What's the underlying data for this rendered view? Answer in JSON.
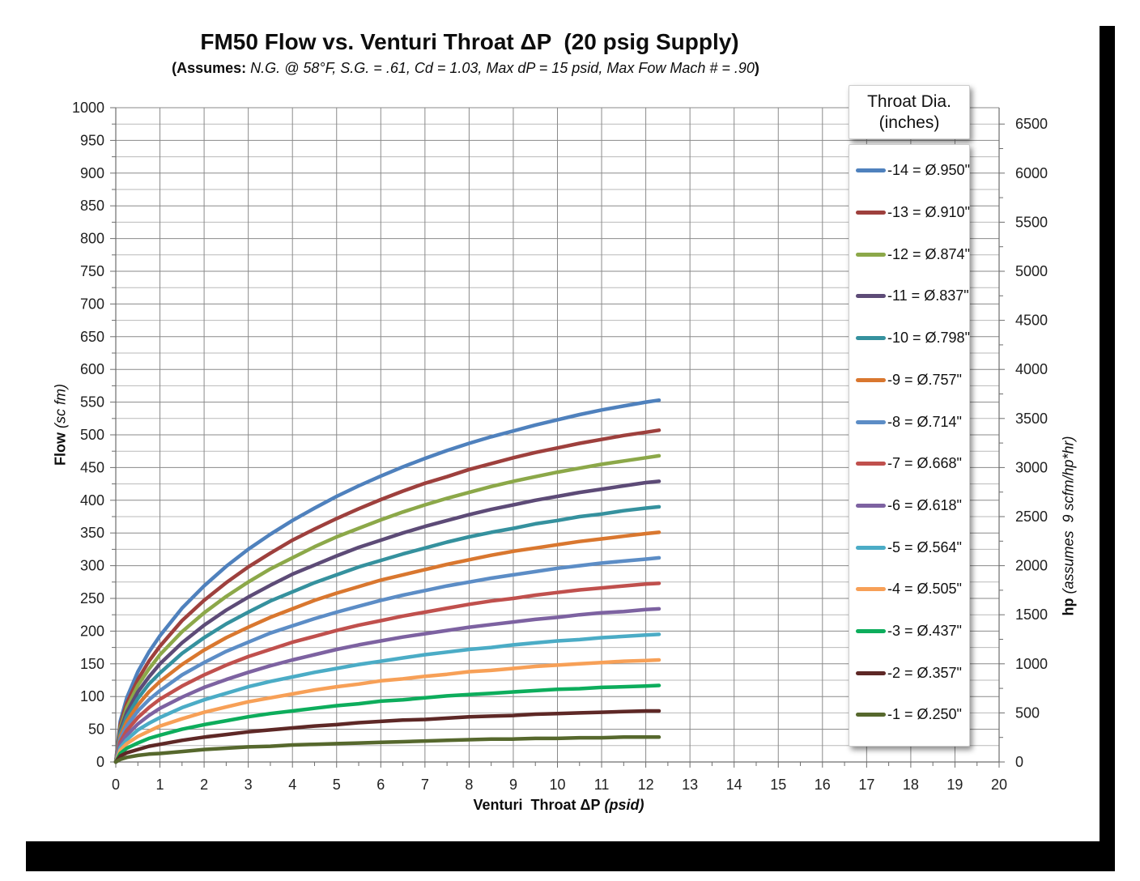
{
  "header": {
    "title": "FM50 Flow vs. Venturi Throat ΔP  (20 psig Supply)",
    "subtitle_prefix": "(Assumes:",
    "subtitle_body": " N.G. @ 58°F, S.G. = .61, Cd = 1.03, Max dP = 15 psid, Max Fow Mach # = .90",
    "subtitle_suffix": ")"
  },
  "axis_titles": {
    "x_bold": "Venturi  Throat ΔP",
    "x_italic": " (psid)",
    "y_left_bold": "Flow",
    "y_left_italic": " (sc fm)",
    "y_right_bold": "hp",
    "y_right_italic": " (assumes  9 scfm/hp*hr)"
  },
  "legend": {
    "title_line1": "Throat Dia.",
    "title_line2": "(inches)",
    "position": "overlay-right"
  },
  "chart_data": {
    "type": "line",
    "title": "FM50 Flow vs. Venturi Throat ΔP  (20 psig Supply)",
    "subtitle": "(Assumes: N.G. @ 58°F, S.G. = .61, Cd = 1.03, Max dP = 15 psid, Max Fow Mach # = .90)",
    "xlabel": "Venturi Throat ΔP (psid)",
    "ylabel_left": "Flow (sc fm)",
    "ylabel_right": "hp (assumes 9 scfm/hp*hr)",
    "legend_title": "Throat Dia. (inches)",
    "grid": "on",
    "x_axis": {
      "min": 0,
      "max": 20,
      "tick_step": 1,
      "minor_step": 0.5,
      "ticks": [
        0,
        1,
        2,
        3,
        4,
        5,
        6,
        7,
        8,
        9,
        10,
        11,
        12,
        13,
        14,
        15,
        16,
        17,
        18,
        19,
        20
      ]
    },
    "y_axis_left": {
      "min": 0,
      "max": 1000,
      "tick_step": 50,
      "minor_step": 25,
      "ticks": [
        0,
        50,
        100,
        150,
        200,
        250,
        300,
        350,
        400,
        450,
        500,
        550,
        600,
        650,
        700,
        750,
        800,
        850,
        900,
        950,
        1000
      ]
    },
    "y_axis_right": {
      "min": 0,
      "max": 6666.7,
      "tick_step": 500,
      "minor_step": 250,
      "hp_per_flow": 6.6667,
      "ticks": [
        0,
        500,
        1000,
        1500,
        2000,
        2500,
        3000,
        3500,
        4000,
        4500,
        5000,
        5500,
        6000,
        6500
      ]
    },
    "x": [
      0,
      0.1,
      0.25,
      0.5,
      0.75,
      1,
      1.5,
      2,
      2.5,
      3,
      3.5,
      4,
      4.5,
      5,
      5.5,
      6,
      6.5,
      7,
      7.5,
      8,
      8.5,
      9,
      9.5,
      10,
      10.5,
      11,
      11.5,
      12,
      12.3
    ],
    "series": [
      {
        "name": "-14 = Ø.950\"",
        "throat_id": "-14",
        "diameter_in": 0.95,
        "color": "#4F81BD",
        "values": [
          0,
          62,
          98,
          138,
          168,
          193,
          235,
          269,
          299,
          325,
          348,
          369,
          388,
          406,
          422,
          437,
          451,
          464,
          476,
          487,
          497,
          506,
          515,
          523,
          531,
          538,
          544,
          550,
          553
        ]
      },
      {
        "name": "-13 = Ø.910\"",
        "throat_id": "-13",
        "diameter_in": 0.91,
        "color": "#9E403D",
        "values": [
          0,
          57,
          90,
          126,
          154,
          177,
          216,
          247,
          274,
          298,
          319,
          339,
          356,
          372,
          387,
          401,
          414,
          426,
          436,
          447,
          456,
          465,
          473,
          480,
          487,
          493,
          499,
          504,
          507
        ]
      },
      {
        "name": "-12 = Ø.874\"",
        "throat_id": "-12",
        "diameter_in": 0.874,
        "color": "#8CA849",
        "values": [
          0,
          52,
          83,
          117,
          142,
          164,
          199,
          228,
          253,
          275,
          295,
          312,
          329,
          344,
          357,
          370,
          382,
          393,
          403,
          412,
          421,
          429,
          436,
          443,
          449,
          455,
          460,
          465,
          468
        ]
      },
      {
        "name": "-11 = Ø.837\"",
        "throat_id": "-11",
        "diameter_in": 0.837,
        "color": "#5D4B77",
        "values": [
          0,
          48,
          76,
          107,
          130,
          150,
          182,
          209,
          232,
          252,
          270,
          287,
          301,
          315,
          328,
          339,
          350,
          360,
          369,
          378,
          386,
          393,
          400,
          406,
          412,
          417,
          422,
          427,
          429
        ]
      },
      {
        "name": "-10 = Ø.798\"",
        "throat_id": "-10",
        "diameter_in": 0.798,
        "color": "#35919E",
        "values": [
          0,
          44,
          69,
          97,
          119,
          136,
          166,
          190,
          211,
          229,
          246,
          260,
          274,
          286,
          298,
          308,
          318,
          327,
          336,
          344,
          351,
          357,
          364,
          369,
          375,
          379,
          384,
          388,
          390
        ]
      },
      {
        "name": "-9 = Ø.757\"",
        "throat_id": "-9",
        "diameter_in": 0.757,
        "color": "#D9772F",
        "values": [
          0,
          39,
          62,
          87,
          107,
          123,
          149,
          171,
          190,
          206,
          221,
          234,
          247,
          258,
          268,
          278,
          286,
          294,
          302,
          309,
          316,
          322,
          327,
          332,
          337,
          341,
          345,
          349,
          351
        ]
      },
      {
        "name": "-8 = Ø.714\"",
        "throat_id": "-8",
        "diameter_in": 0.714,
        "color": "#5C8DC6",
        "values": [
          0,
          35,
          55,
          78,
          95,
          109,
          133,
          152,
          169,
          183,
          197,
          208,
          219,
          229,
          238,
          247,
          255,
          262,
          269,
          275,
          281,
          286,
          291,
          296,
          300,
          304,
          307,
          310,
          312
        ]
      },
      {
        "name": "-7 = Ø.668\"",
        "throat_id": "-7",
        "diameter_in": 0.668,
        "color": "#C0504D",
        "values": [
          0,
          31,
          48,
          68,
          83,
          96,
          116,
          133,
          148,
          161,
          172,
          183,
          192,
          201,
          209,
          216,
          223,
          229,
          235,
          241,
          246,
          250,
          255,
          259,
          263,
          266,
          269,
          272,
          273
        ]
      },
      {
        "name": "-6 = Ø.618\"",
        "throat_id": "-6",
        "diameter_in": 0.618,
        "color": "#7D62A1",
        "values": [
          0,
          26,
          41,
          58,
          71,
          82,
          99,
          114,
          126,
          137,
          147,
          156,
          164,
          172,
          179,
          185,
          191,
          196,
          201,
          206,
          210,
          214,
          218,
          221,
          225,
          228,
          230,
          233,
          234
        ]
      },
      {
        "name": "-5 = Ø.564\"",
        "throat_id": "-5",
        "diameter_in": 0.564,
        "color": "#4BACC6",
        "values": [
          0,
          22,
          34,
          49,
          59,
          68,
          83,
          95,
          105,
          115,
          123,
          130,
          137,
          143,
          149,
          154,
          159,
          164,
          168,
          172,
          175,
          179,
          182,
          185,
          187,
          190,
          192,
          194,
          195
        ]
      },
      {
        "name": "-4 = Ø.505\"",
        "throat_id": "-4",
        "diameter_in": 0.505,
        "color": "#F7A057",
        "values": [
          0,
          18,
          28,
          39,
          47,
          55,
          66,
          76,
          84,
          92,
          98,
          104,
          110,
          115,
          119,
          124,
          127,
          131,
          134,
          138,
          140,
          143,
          146,
          148,
          150,
          152,
          154,
          155,
          156
        ]
      },
      {
        "name": "-3 = Ø.437\"",
        "throat_id": "-3",
        "diameter_in": 0.437,
        "color": "#0DAD5C",
        "values": [
          0,
          13,
          21,
          29,
          36,
          41,
          50,
          57,
          63,
          69,
          74,
          78,
          82,
          86,
          89,
          93,
          95,
          98,
          101,
          103,
          105,
          107,
          109,
          111,
          112,
          114,
          115,
          116,
          117
        ]
      },
      {
        "name": "-2 = Ø.357\"",
        "throat_id": "-2",
        "diameter_in": 0.357,
        "color": "#5E2826",
        "values": [
          0,
          9,
          14,
          19,
          24,
          27,
          33,
          38,
          42,
          46,
          49,
          52,
          55,
          57,
          60,
          62,
          64,
          65,
          67,
          69,
          70,
          71,
          73,
          74,
          75,
          76,
          77,
          78,
          78
        ]
      },
      {
        "name": "-1 = Ø.250\"",
        "throat_id": "-1",
        "diameter_in": 0.25,
        "color": "#56682D",
        "values": [
          0,
          4,
          7,
          10,
          12,
          13,
          16,
          19,
          21,
          23,
          24,
          26,
          27,
          28,
          29,
          30,
          31,
          32,
          33,
          34,
          35,
          35,
          36,
          36,
          37,
          37,
          38,
          38,
          38
        ]
      }
    ]
  }
}
